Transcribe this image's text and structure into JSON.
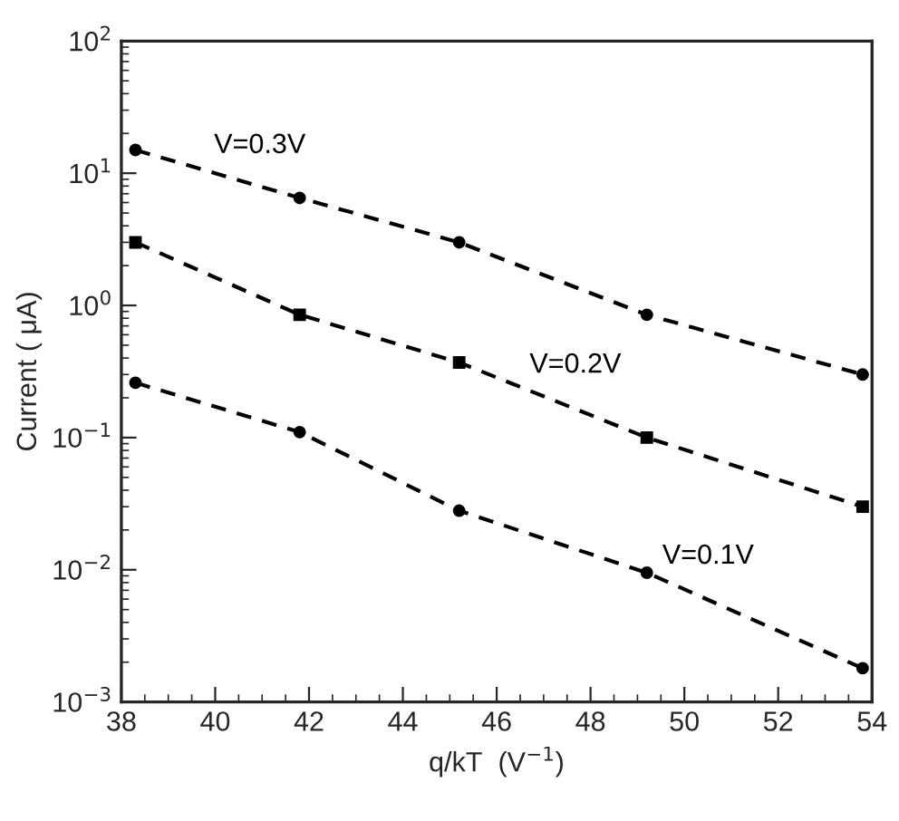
{
  "chart_data": {
    "type": "line",
    "xlabel": "q/kT  (V$^{−1}$)",
    "ylabel": "Current ( μA)",
    "log": "y",
    "x": [
      38.3,
      41.8,
      45.2,
      49.2,
      53.8
    ],
    "xlim": [
      38,
      54
    ],
    "xticks": [
      38,
      40,
      42,
      44,
      46,
      48,
      50,
      52,
      54
    ],
    "ylim": [
      0.001,
      100
    ],
    "yticks": [
      {
        "value": 0.001,
        "label": "10$^{−3}$"
      },
      {
        "value": 0.01,
        "label": "10$^{−2}$"
      },
      {
        "value": 0.1,
        "label": "10$^{−1}$"
      },
      {
        "value": 1,
        "label": "10$^{0}$"
      },
      {
        "value": 10,
        "label": "10$^{1}$"
      },
      {
        "value": 100,
        "label": "10$^{2}$"
      }
    ],
    "grid": false,
    "legend": false,
    "line_style": "dashed",
    "series": [
      {
        "name": "V=0.3V",
        "color": "#000000",
        "marker": "circle",
        "values": [
          15,
          6.5,
          3,
          0.85,
          0.3
        ]
      },
      {
        "name": "V=0.2V",
        "color": "#000000",
        "marker": "square",
        "values": [
          3,
          0.85,
          0.37,
          0.1,
          0.03
        ]
      },
      {
        "name": "V=0.1V",
        "color": "#000000",
        "marker": "circle",
        "values": [
          0.26,
          0.11,
          0.028,
          0.0095,
          0.0018
        ]
      }
    ]
  }
}
